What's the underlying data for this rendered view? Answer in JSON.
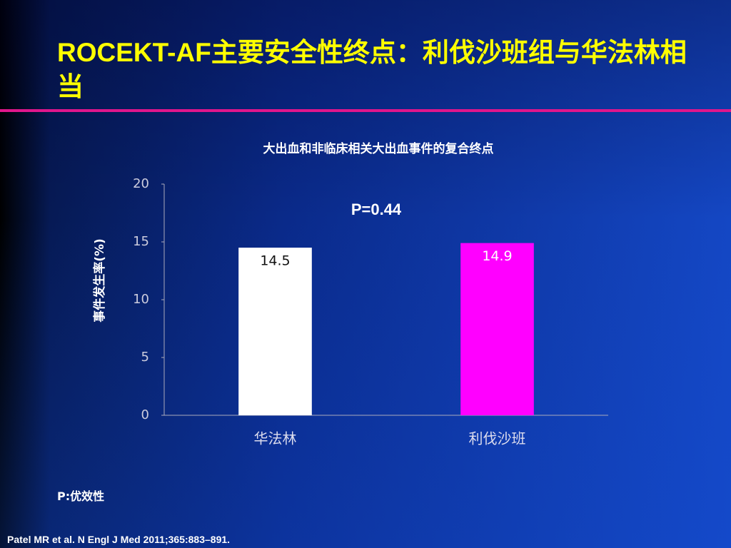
{
  "slide_title": "ROCEKT-AF主要安全性终点：利伐沙班组与华法林相当",
  "footnote": "P:优效性",
  "reference": "Patel MR et al. N Engl J Med 2011;365:883–891.",
  "chart_data": {
    "type": "bar",
    "title": "大出血和非临床相关大出血事件的复合终点",
    "y_label": "事件发生率(%)",
    "annotation": "P=0.44",
    "categories": [
      "华法林",
      "利伐沙班"
    ],
    "values": [
      14.5,
      14.9
    ],
    "colors": [
      "#ffffff",
      "#ff00ff"
    ],
    "ylim": [
      0,
      20
    ],
    "yticks": [
      0,
      5,
      10,
      15,
      20
    ],
    "grid": false
  }
}
